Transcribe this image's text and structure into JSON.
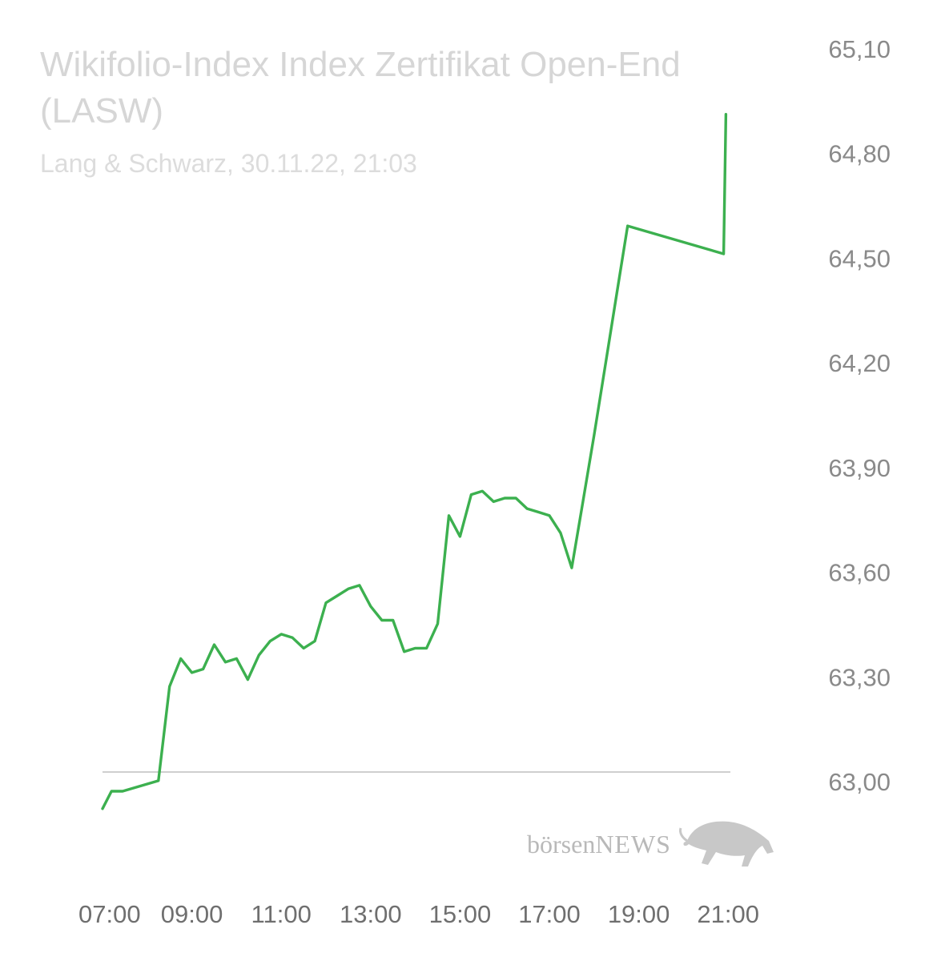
{
  "header": {
    "title": "Wikifolio-Index Index Zertifikat Open-End (LASW)",
    "subtitle": "Lang & Schwarz, 30.11.22, 21:03"
  },
  "watermark": {
    "prefix": "börsen",
    "suffix": "NEWS",
    "icon": "bull-icon"
  },
  "colors": {
    "line": "#3cb04f",
    "baseline": "#cfcfcf",
    "ytick": "#8a8a8a",
    "xtick": "#6f6f6f"
  },
  "chart_data": {
    "type": "line",
    "title": "Wikifolio-Index Index Zertifikat Open-End (LASW)",
    "ylim": [
      63.0,
      65.1
    ],
    "xlim": [
      7.0,
      21.05
    ],
    "baseline": 63.0,
    "y_ticks": [
      "65,10",
      "64,80",
      "64,50",
      "64,20",
      "63,90",
      "63,60",
      "63,30",
      "63,00"
    ],
    "y_tick_values": [
      65.1,
      64.8,
      64.5,
      64.2,
      63.9,
      63.6,
      63.3,
      63.0
    ],
    "x_ticks": [
      "07:00",
      "09:00",
      "11:00",
      "13:00",
      "15:00",
      "17:00",
      "19:00",
      "21:00"
    ],
    "x_tick_values": [
      7,
      9,
      11,
      13,
      15,
      17,
      19,
      21
    ],
    "grid": false,
    "legend": "none",
    "series": [
      {
        "x": [
          7.0,
          7.2,
          7.45,
          8.25,
          8.5,
          8.75,
          9.0,
          9.25,
          9.5,
          9.75,
          10.0,
          10.25,
          10.5,
          10.75,
          11.0,
          11.25,
          11.5,
          11.75,
          12.0,
          12.25,
          12.5,
          12.75,
          13.0,
          13.25,
          13.5,
          13.75,
          14.0,
          14.25,
          14.5,
          14.75,
          15.0,
          15.25,
          15.5,
          15.75,
          16.0,
          16.25,
          16.5,
          16.75,
          17.0,
          17.25,
          17.5,
          17.75,
          18.0,
          18.25,
          18.5,
          18.75,
          20.9,
          20.95
        ],
        "y": [
          62.95,
          63.0,
          63.0,
          63.03,
          63.3,
          63.38,
          63.34,
          63.35,
          63.42,
          63.37,
          63.38,
          63.32,
          63.39,
          63.43,
          63.45,
          63.44,
          63.41,
          63.43,
          63.54,
          63.56,
          63.58,
          63.59,
          63.53,
          63.49,
          63.49,
          63.4,
          63.41,
          63.41,
          63.48,
          63.79,
          63.73,
          63.85,
          63.86,
          63.83,
          63.84,
          63.84,
          63.81,
          63.8,
          63.79,
          63.74,
          63.64,
          63.83,
          64.02,
          64.22,
          64.42,
          64.62,
          64.54,
          64.94
        ]
      }
    ]
  }
}
